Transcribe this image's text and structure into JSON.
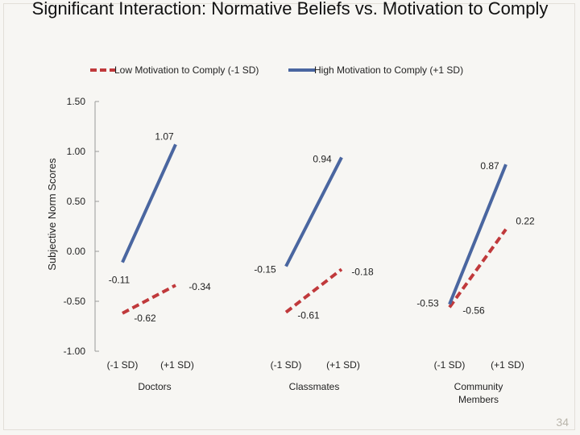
{
  "slide": {
    "title": "Significant Interaction: Normative Beliefs vs. Motivation to Comply",
    "page_number": "34"
  },
  "colors": {
    "low": "#c0393b",
    "high": "#4a66a0",
    "axis": "#9a9a9a"
  },
  "chart_data": {
    "type": "line",
    "title": "",
    "ylabel": "Subjective Norm Scores",
    "ylim": [
      -1.0,
      1.5
    ],
    "yticks": [
      1.5,
      1.0,
      0.5,
      0.0,
      -0.5,
      -1.0
    ],
    "ytick_labels": [
      "1.50",
      "1.00",
      "0.50",
      "0.00",
      "-0.50",
      "-1.00"
    ],
    "legend_position": "top",
    "x_points": [
      "(-1 SD)",
      "(+1 SD)"
    ],
    "groups": [
      {
        "name_lines": [
          "Doctors"
        ],
        "low_values": [
          -0.62,
          -0.34
        ],
        "high_values": [
          -0.11,
          1.07
        ],
        "low_labels": [
          "-0.62",
          "-0.34"
        ],
        "high_labels": [
          "-0.11",
          "1.07"
        ]
      },
      {
        "name_lines": [
          "Classmates"
        ],
        "low_values": [
          -0.61,
          -0.18
        ],
        "high_values": [
          -0.15,
          0.94
        ],
        "low_labels": [
          "-0.61",
          "-0.18"
        ],
        "high_labels": [
          "-0.15",
          "0.94"
        ]
      },
      {
        "name_lines": [
          "Community",
          "Members"
        ],
        "low_values": [
          -0.56,
          0.22
        ],
        "high_values": [
          -0.53,
          0.87
        ],
        "low_labels": [
          "-0.56",
          "0.22"
        ],
        "high_labels": [
          "-0.53",
          "0.87"
        ]
      }
    ],
    "series": [
      {
        "name": "Low Motivation to Comply (-1 SD)",
        "style": "dashed"
      },
      {
        "name": "High Motivation to Comply (+1 SD)",
        "style": "solid"
      }
    ]
  }
}
